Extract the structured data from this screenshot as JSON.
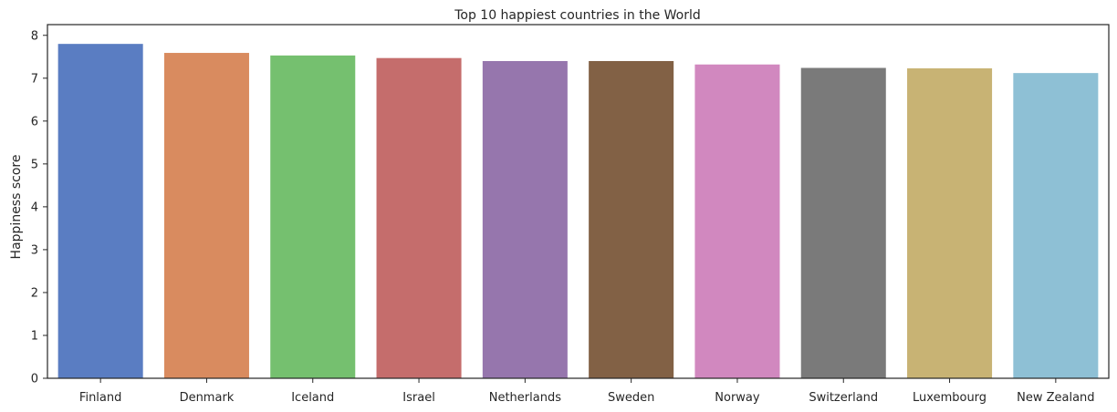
{
  "chart_data": {
    "type": "bar",
    "title": "Top 10 happiest countries in the World",
    "xlabel": "",
    "ylabel": "Happiness score",
    "categories": [
      "Finland",
      "Denmark",
      "Iceland",
      "Israel",
      "Netherlands",
      "Sweden",
      "Norway",
      "Switzerland",
      "Luxembourg",
      "New Zealand"
    ],
    "values": [
      7.8,
      7.59,
      7.53,
      7.47,
      7.4,
      7.4,
      7.32,
      7.24,
      7.23,
      7.12
    ],
    "ylim": [
      0,
      8.25
    ],
    "yticks": [
      "0",
      "1",
      "2",
      "3",
      "4",
      "5",
      "6",
      "7",
      "8"
    ],
    "grid": false,
    "colors": [
      "#5a7dc2",
      "#d98b5f",
      "#75c06f",
      "#c56d6c",
      "#9676ad",
      "#826145",
      "#d188bf",
      "#7a7a7a",
      "#c8b374",
      "#8ec0d5"
    ]
  }
}
